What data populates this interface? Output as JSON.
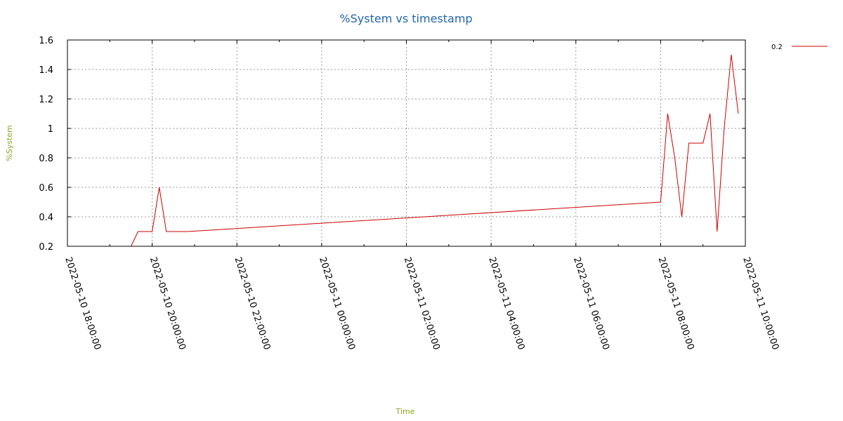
{
  "chart_data": {
    "type": "line",
    "title": "%System vs timestamp",
    "xlabel": "Time",
    "ylabel": "%System",
    "ylim": [
      0.2,
      1.6
    ],
    "xlim": [
      "2022-05-10 18:00:00",
      "2022-05-11 10:00:00"
    ],
    "yticks": [
      "0.2",
      "0.4",
      "0.6",
      "0.8",
      "1",
      "1.2",
      "1.4",
      "1.6"
    ],
    "xticks": [
      "2022-05-10 18:00:00",
      "2022-05-10 20:00:00",
      "2022-05-10 22:00:00",
      "2022-05-11 00:00:00",
      "2022-05-11 02:00:00",
      "2022-05-11 04:00:00",
      "2022-05-11 06:00:00",
      "2022-05-11 08:00:00",
      "2022-05-11 10:00:00"
    ],
    "grid": true,
    "legend_position": "top-right",
    "series": [
      {
        "name": "0.2",
        "color": "#cc0000",
        "points": [
          [
            "2022-05-10 19:30:00",
            0.2
          ],
          [
            "2022-05-10 19:40:00",
            0.3
          ],
          [
            "2022-05-10 20:00:00",
            0.3
          ],
          [
            "2022-05-10 20:10:00",
            0.6
          ],
          [
            "2022-05-10 20:20:00",
            0.3
          ],
          [
            "2022-05-10 20:50:00",
            0.3
          ],
          [
            "2022-05-11 08:00:00",
            0.5
          ],
          [
            "2022-05-11 08:10:00",
            1.1
          ],
          [
            "2022-05-11 08:20:00",
            0.8
          ],
          [
            "2022-05-11 08:30:00",
            0.4
          ],
          [
            "2022-05-11 08:40:00",
            0.9
          ],
          [
            "2022-05-11 09:00:00",
            0.9
          ],
          [
            "2022-05-11 09:10:00",
            1.1
          ],
          [
            "2022-05-11 09:20:00",
            0.3
          ],
          [
            "2022-05-11 09:30:00",
            1.0
          ],
          [
            "2022-05-11 09:40:00",
            1.5
          ],
          [
            "2022-05-11 09:50:00",
            1.1
          ]
        ]
      }
    ]
  }
}
